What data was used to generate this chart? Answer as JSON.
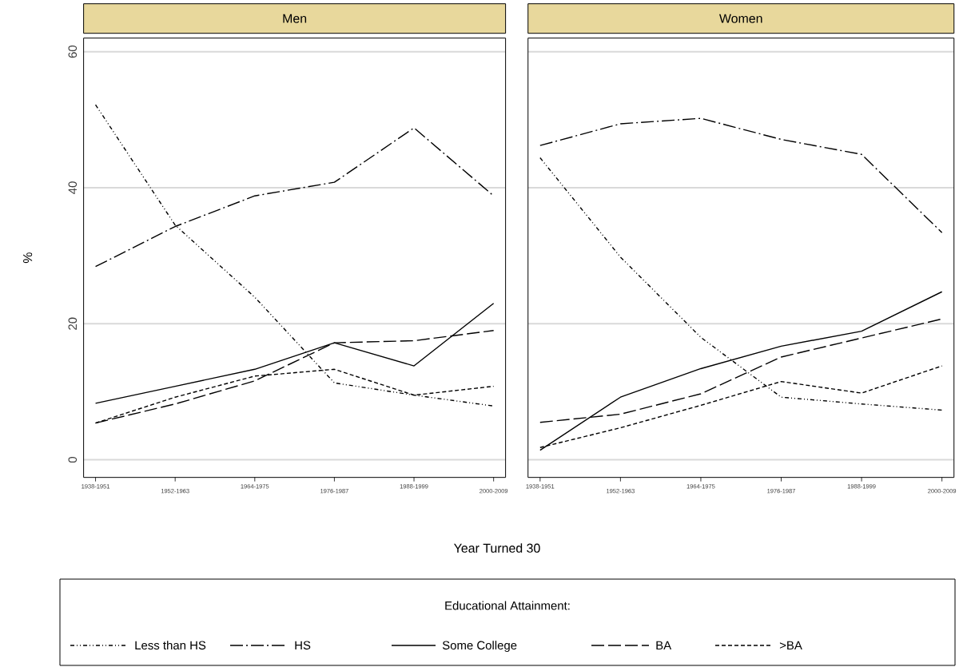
{
  "chart_data": [
    {
      "type": "line",
      "title": "Men",
      "ylabel": "%",
      "xlabel": "Year Turned 30",
      "legend_title": "Educational Attainment:",
      "legend": "bottom",
      "grid": "y",
      "categories": [
        "1938-1951",
        "1952-1963",
        "1964-1975",
        "1976-1987",
        "1988-1999",
        "2000-2009"
      ],
      "ylim": [
        -2.6,
        62
      ],
      "yticks": [
        0,
        20,
        40,
        60
      ],
      "series": [
        {
          "name": "Less than HS",
          "color": "#000000",
          "line_style": "dashdotdotted",
          "values": [
            52.2,
            34.5,
            23.9,
            11.3,
            9.5,
            7.9
          ]
        },
        {
          "name": "HS",
          "color": "#000000",
          "line_style": "longdashdotted",
          "values": [
            28.4,
            34.3,
            38.8,
            40.8,
            48.8,
            38.8
          ]
        },
        {
          "name": "Some College",
          "color": "#000000",
          "line_style": "solid",
          "values": [
            8.3,
            10.8,
            13.3,
            17.2,
            13.8,
            23.0
          ]
        },
        {
          "name": "BA",
          "color": "#000000",
          "line_style": "longdashed",
          "values": [
            5.4,
            8.2,
            11.6,
            17.2,
            17.5,
            19.0
          ]
        },
        {
          "name": ">BA",
          "color": "#000000",
          "line_style": "dashed",
          "values": [
            5.4,
            9.2,
            12.3,
            13.3,
            9.5,
            10.8
          ]
        }
      ]
    },
    {
      "type": "line",
      "title": "Women",
      "grid": "y",
      "tick_labels": "x",
      "categories": [
        "1938-1951",
        "1952-1963",
        "1964-1975",
        "1976-1987",
        "1988-1999",
        "2000-2009"
      ],
      "ylim": [
        -2.6,
        62
      ],
      "yticks": [
        0,
        20,
        40,
        60
      ],
      "series": [
        {
          "color": "#000000",
          "line_style": "dashdotdotted",
          "values": [
            44.4,
            29.8,
            18.0,
            9.2,
            8.2,
            7.3
          ]
        },
        {
          "color": "#000000",
          "line_style": "longdashdotted",
          "values": [
            46.2,
            49.4,
            50.2,
            47.1,
            44.9,
            33.4
          ]
        },
        {
          "color": "#000000",
          "line_style": "solid",
          "values": [
            1.4,
            9.2,
            13.4,
            16.7,
            18.9,
            24.7
          ]
        },
        {
          "color": "#000000",
          "line_style": "longdashed",
          "values": [
            5.5,
            6.7,
            9.7,
            15.1,
            17.9,
            20.7
          ]
        },
        {
          "color": "#000000",
          "line_style": "dashed",
          "values": [
            1.8,
            4.7,
            8.0,
            11.5,
            9.8,
            13.8
          ]
        }
      ]
    }
  ]
}
